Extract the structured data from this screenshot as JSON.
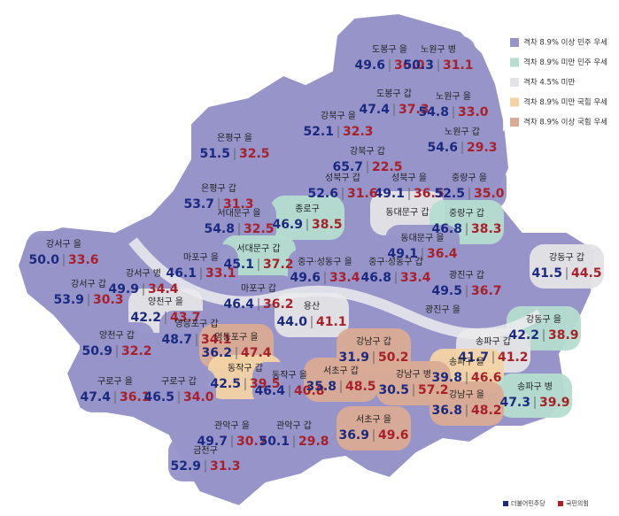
{
  "legend": [
    {
      "label": "격차 8.9% 이상 민주 우세",
      "color": "#9694c9"
    },
    {
      "label": "격차 8.9% 미만 민주 우세",
      "color": "#b5ddd0"
    },
    {
      "label": "격차 4.5% 미만",
      "color": "#e3e3e6"
    },
    {
      "label": "격차 8.9% 미만 국힘 우세",
      "color": "#f3d3a4"
    },
    {
      "label": "격차 8.9% 이상 국힘 우세",
      "color": "#d9ab94"
    }
  ],
  "parties": [
    {
      "name": "더불어민주당",
      "color": "#1b2a80"
    },
    {
      "name": "국민의힘",
      "color": "#a8202a"
    }
  ],
  "districts": [
    {
      "name": "도봉구 을",
      "values": [
        49.6,
        36
      ],
      "value_labels": [
        "49.6",
        "36.0"
      ],
      "color": "#9694c9"
    },
    {
      "name": "노원구 병",
      "values": [
        50.3,
        31.1
      ],
      "color": "#9694c9"
    },
    {
      "name": "도봉구 갑",
      "values": [
        47.4,
        37.3
      ],
      "color": "#9694c9"
    },
    {
      "name": "노원구 을",
      "values": [
        54.8,
        33
      ],
      "value_labels": [
        "54.8",
        "33.0"
      ],
      "color": "#9694c9"
    },
    {
      "name": "강북구 을",
      "values": [
        52.1,
        32.3
      ],
      "color": "#9694c9"
    },
    {
      "name": "노원구 갑",
      "values": [
        54.6,
        29.3
      ],
      "color": "#9694c9"
    },
    {
      "name": "은평구 을",
      "values": [
        51.5,
        32.5
      ],
      "color": "#9694c9"
    },
    {
      "name": "강북구 갑",
      "values": [
        65.7,
        22.5
      ],
      "color": "#9694c9"
    },
    {
      "name": "성북구 을",
      "values": [
        49.1,
        36.5
      ],
      "color": "#9694c9"
    },
    {
      "name": "성북구 갑",
      "values": [
        52.6,
        31.6
      ],
      "color": "#9694c9"
    },
    {
      "name": "중랑구 을",
      "values": [
        52.5,
        35
      ],
      "value_labels": [
        "52.5",
        "35.0"
      ],
      "color": "#9694c9"
    },
    {
      "name": "은평구 갑",
      "values": [
        53.7,
        31.3
      ],
      "color": "#9694c9"
    },
    {
      "name": "종로구",
      "values": [
        46.9,
        38.5
      ],
      "color": "#b5ddd0"
    },
    {
      "name": "동대문구 갑",
      "color": "#e3e3e6"
    },
    {
      "name": "중랑구 갑",
      "values": [
        46.8,
        38.3
      ],
      "color": "#b5ddd0"
    },
    {
      "name": "서대문구 을",
      "values": [
        54.8,
        32.5
      ],
      "color": "#9694c9"
    },
    {
      "name": "강서구 을",
      "values": [
        50,
        33.6
      ],
      "value_labels": [
        "50.0",
        "33.6"
      ],
      "color": "#9694c9"
    },
    {
      "name": "동대문구 을",
      "values": [
        49.1,
        36.4
      ],
      "color": "#9694c9"
    },
    {
      "name": "서대문구 갑",
      "values": [
        45.1,
        37.2
      ],
      "color": "#b5ddd0"
    },
    {
      "name": "마포구 을",
      "values": [
        46.1,
        33.1
      ],
      "color": "#9694c9"
    },
    {
      "name": "중구·성동구 을",
      "values": [
        49.6,
        33.4
      ],
      "color": "#9694c9"
    },
    {
      "name": "중구·성동구 갑",
      "values": [
        46.8,
        33.4
      ],
      "color": "#9694c9"
    },
    {
      "name": "광진구 갑",
      "values": [
        49.5,
        36.7
      ],
      "color": "#9694c9"
    },
    {
      "name": "강동구 갑",
      "values": [
        41.5,
        44.5
      ],
      "color": "#e3e3e6"
    },
    {
      "name": "강서구 병",
      "values": [
        49.9,
        34.4
      ],
      "color": "#9694c9"
    },
    {
      "name": "강서구 갑",
      "values": [
        53.9,
        30.3
      ],
      "color": "#9694c9"
    },
    {
      "name": "마포구 갑",
      "values": [
        46.4,
        36.2
      ],
      "color": "#9694c9"
    },
    {
      "name": "양천구 을",
      "values": [
        42.2,
        43.7
      ],
      "color": "#e3e3e6"
    },
    {
      "name": "광진구 을",
      "color": "#9694c9"
    },
    {
      "name": "용산",
      "values": [
        44,
        41.1
      ],
      "value_labels": [
        "44.0",
        "41.1"
      ],
      "color": "#e3e3e6"
    },
    {
      "name": "강동구 을",
      "values": [
        42.2,
        38.9
      ],
      "color": "#b5ddd0"
    },
    {
      "name": "영등포구 갑",
      "values": [
        48.7,
        34.1
      ],
      "color": "#9694c9"
    },
    {
      "name": "양천구 갑",
      "values": [
        50.9,
        32.2
      ],
      "color": "#9694c9"
    },
    {
      "name": "강남구 갑",
      "values": [
        31.9,
        50.2
      ],
      "color": "#d9ab94"
    },
    {
      "name": "영등포구 을",
      "values": [
        36.2,
        47.4
      ],
      "color": "#d9ab94"
    },
    {
      "name": "송파구 갑",
      "values": [
        41.7,
        41.2
      ],
      "color": "#e3e3e6"
    },
    {
      "name": "송파구 을",
      "values": [
        39.8,
        46.6
      ],
      "color": "#f3d3a4"
    },
    {
      "name": "동작구 갑",
      "values": [
        42.5,
        39.5
      ],
      "color": "#f3d3a4"
    },
    {
      "name": "동작구 을",
      "values": [
        46.4,
        40.8
      ],
      "color": "#9694c9"
    },
    {
      "name": "서초구 갑",
      "values": [
        35.8,
        48.5
      ],
      "color": "#d9ab94"
    },
    {
      "name": "강남구 병",
      "values": [
        30.5,
        57.2
      ],
      "color": "#d9ab94"
    },
    {
      "name": "구로구 을",
      "values": [
        47.4,
        36.1
      ],
      "color": "#9694c9"
    },
    {
      "name": "구로구 갑",
      "values": [
        46.5,
        34
      ],
      "value_labels": [
        "46.5",
        "34.0"
      ],
      "color": "#9694c9"
    },
    {
      "name": "송파구 병",
      "values": [
        47.3,
        39.9
      ],
      "color": "#b5ddd0"
    },
    {
      "name": "강남구 을",
      "values": [
        36.8,
        48.2
      ],
      "color": "#d9ab94"
    },
    {
      "name": "관악구 을",
      "values": [
        49.7,
        30.7
      ],
      "color": "#9694c9"
    },
    {
      "name": "관악구 갑",
      "values": [
        50.1,
        29.8
      ],
      "color": "#9694c9"
    },
    {
      "name": "서초구 을",
      "values": [
        36.9,
        49.6
      ],
      "color": "#d9ab94"
    },
    {
      "name": "금천구",
      "values": [
        52.9,
        31.3
      ],
      "color": "#9694c9"
    }
  ]
}
